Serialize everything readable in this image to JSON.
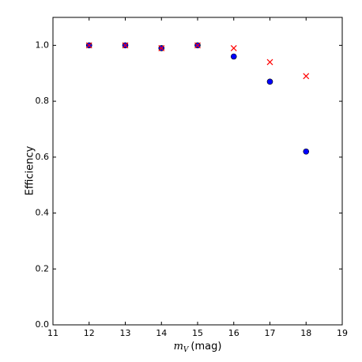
{
  "chart_data": {
    "type": "scatter",
    "xlabel": {
      "symbol": "m",
      "subscript": "V",
      "unit": "(mag)"
    },
    "ylabel": "Efficiency",
    "x": [
      12,
      13,
      14,
      15,
      16,
      17,
      18
    ],
    "series": [
      {
        "color": "#0000ff",
        "marker": "circle",
        "values": [
          1.0,
          1.0,
          0.99,
          1.0,
          0.96,
          0.87,
          0.62
        ]
      },
      {
        "color": "#ff0000",
        "marker": "x",
        "values": [
          1.0,
          1.0,
          0.99,
          1.0,
          0.99,
          0.94,
          0.89
        ]
      }
    ],
    "xlim": [
      11,
      19
    ],
    "xticks": [
      11,
      12,
      13,
      14,
      15,
      16,
      17,
      18,
      19
    ],
    "ylim": [
      0,
      1.1
    ],
    "yticks": [
      {
        "value": 0,
        "label": "0.0"
      },
      {
        "value": 0.2,
        "label": "0.2"
      },
      {
        "value": 0.4,
        "label": "0.4"
      },
      {
        "value": 0.6,
        "label": "0.6"
      },
      {
        "value": 0.8,
        "label": "0.8"
      },
      {
        "value": 1.0,
        "label": "1.0"
      }
    ]
  }
}
